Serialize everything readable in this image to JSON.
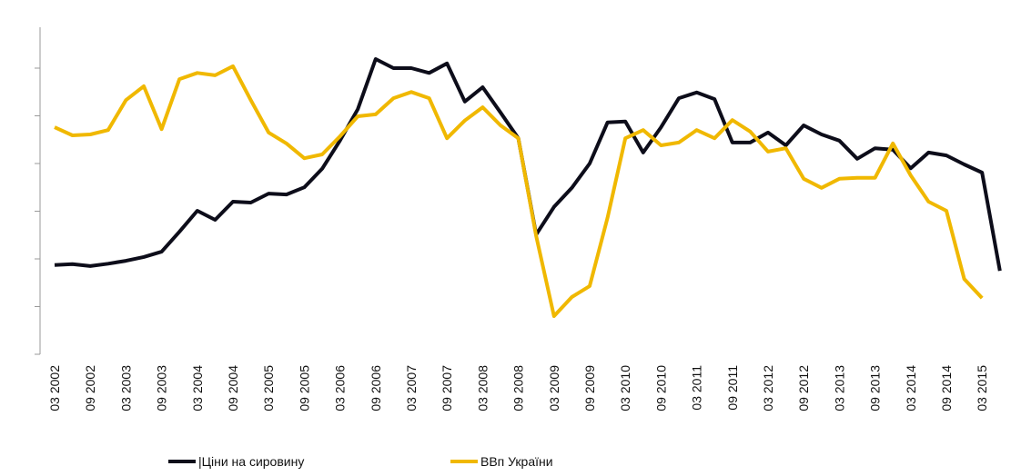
{
  "chart_data": {
    "type": "line",
    "categories": [
      "03 2002",
      null,
      "09 2002",
      null,
      "03 2003",
      null,
      "09 2003",
      null,
      "03 2004",
      null,
      "09 2004",
      null,
      "03 2005",
      null,
      "09 2005",
      null,
      "03 2006",
      null,
      "09 2006",
      null,
      "03 2007",
      null,
      "09 2007",
      null,
      "03 2008",
      null,
      "09 2008",
      null,
      "03 2009",
      null,
      "09 2009",
      null,
      "03 2010",
      null,
      "09 2010",
      null,
      "03 2011",
      null,
      "09 2011",
      null,
      "03 2012",
      null,
      "09 2012",
      null,
      "03 2013",
      null,
      "09 2013",
      null,
      "03 2014",
      null,
      "09 2014",
      null,
      "03 2015",
      null
    ],
    "series": [
      {
        "name": "|Ціни на сировину",
        "color": "#0d0d1a",
        "values": [
          1.87,
          1.89,
          1.85,
          1.9,
          1.96,
          2.04,
          2.15,
          2.57,
          3.01,
          2.82,
          3.2,
          3.18,
          3.37,
          3.35,
          3.5,
          3.89,
          4.48,
          5.14,
          6.19,
          6.0,
          6.0,
          5.9,
          6.1,
          5.3,
          5.6,
          5.07,
          4.53,
          2.51,
          3.09,
          3.49,
          4.0,
          4.86,
          4.88,
          4.23,
          4.76,
          5.37,
          5.49,
          5.35,
          4.44,
          4.44,
          4.65,
          4.38,
          4.8,
          4.61,
          4.48,
          4.1,
          4.32,
          4.29,
          3.9,
          4.23,
          4.17,
          3.98,
          3.81,
          1.75
        ]
      },
      {
        "name": "ВВп України",
        "color": "#f0b800",
        "values": [
          4.76,
          4.59,
          4.61,
          4.7,
          5.33,
          5.62,
          4.72,
          5.77,
          5.9,
          5.85,
          6.04,
          5.33,
          4.65,
          4.42,
          4.11,
          4.19,
          4.57,
          4.99,
          5.03,
          5.37,
          5.5,
          5.37,
          4.53,
          4.9,
          5.18,
          4.8,
          4.53,
          2.48,
          0.8,
          1.2,
          1.43,
          2.86,
          4.53,
          4.7,
          4.38,
          4.44,
          4.7,
          4.53,
          4.91,
          4.67,
          4.25,
          4.32,
          3.68,
          3.49,
          3.68,
          3.7,
          3.7,
          4.42,
          3.75,
          3.2,
          3.01,
          1.58,
          1.18,
          null
        ]
      }
    ],
    "ylim": [
      0,
      6.8
    ],
    "yticks": [
      0,
      1,
      2,
      3,
      4,
      5,
      6
    ]
  }
}
